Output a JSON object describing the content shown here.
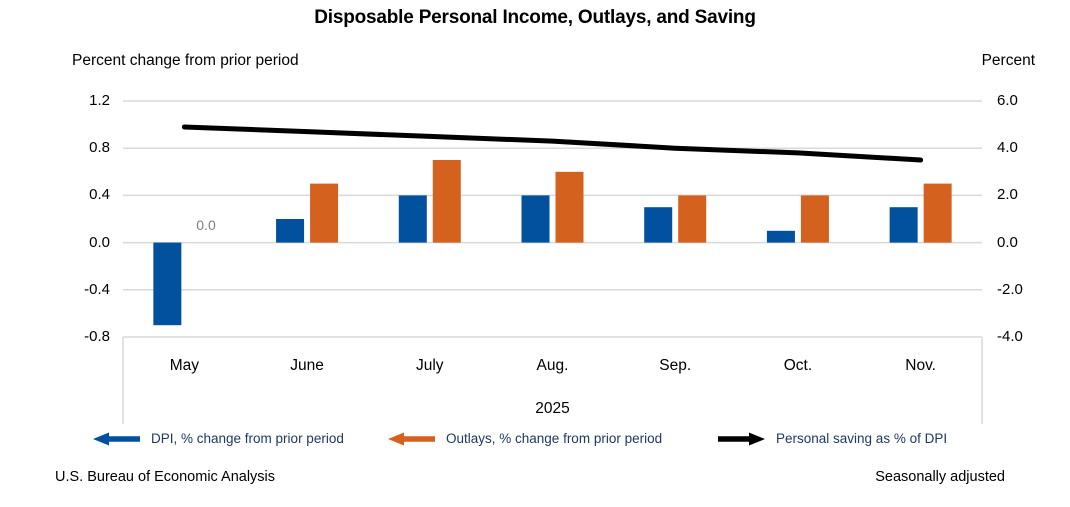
{
  "footer": {
    "source": "U.S. Bureau of Economic Analysis",
    "note": "Seasonally adjusted"
  },
  "colors": {
    "dpi_bar": "#02519E",
    "outlays_bar": "#D4611E",
    "saving_line": "#000000",
    "gridline": "#D9D9D9",
    "annotation": "#808080",
    "legend_text": "#1F3864",
    "axis_text": "#000000"
  },
  "legend": {
    "position": "bottom",
    "items": [
      {
        "series_index": 0,
        "arrow": "left",
        "color_key": "dpi_bar"
      },
      {
        "series_index": 1,
        "arrow": "left",
        "color_key": "outlays_bar"
      },
      {
        "series_index": 2,
        "arrow": "right",
        "color_key": "saving_line"
      }
    ]
  },
  "chart_data": {
    "type": "bar",
    "subtype": "grouped bars (left axis) with overlay line (right axis)",
    "title": "Disposable Personal Income, Outlays, and Saving",
    "categories": [
      "May",
      "June",
      "July",
      "Aug.",
      "Sep.",
      "Oct.",
      "Nov."
    ],
    "year_label": "2025",
    "series": [
      {
        "name": "DPI, % change from prior period",
        "type": "bar",
        "axis": "left",
        "values": [
          -0.7,
          0.2,
          0.4,
          0.4,
          0.3,
          0.1,
          0.3
        ]
      },
      {
        "name": "Outlays, % change from prior period",
        "type": "bar",
        "axis": "left",
        "values": [
          0.0,
          0.5,
          0.7,
          0.6,
          0.4,
          0.4,
          0.5
        ]
      },
      {
        "name": "Personal saving as % of DPI",
        "type": "line",
        "axis": "right",
        "values": [
          4.9,
          4.7,
          4.5,
          4.3,
          4.0,
          3.8,
          3.5
        ]
      }
    ],
    "left_axis": {
      "title": "Percent change from prior period",
      "ticks": [
        1.2,
        0.8,
        0.4,
        0.0,
        -0.4,
        -0.8
      ],
      "min": -0.8,
      "max": 1.2
    },
    "right_axis": {
      "title": "Percent",
      "ticks": [
        6.0,
        4.0,
        2.0,
        0.0,
        -2.0,
        -4.0
      ],
      "min": -4.0,
      "max": 6.0
    },
    "annotations": [
      {
        "text": "0.0",
        "category": "May",
        "series": "Outlays, % change from prior period"
      }
    ],
    "grid": true,
    "legend_position": "bottom"
  }
}
